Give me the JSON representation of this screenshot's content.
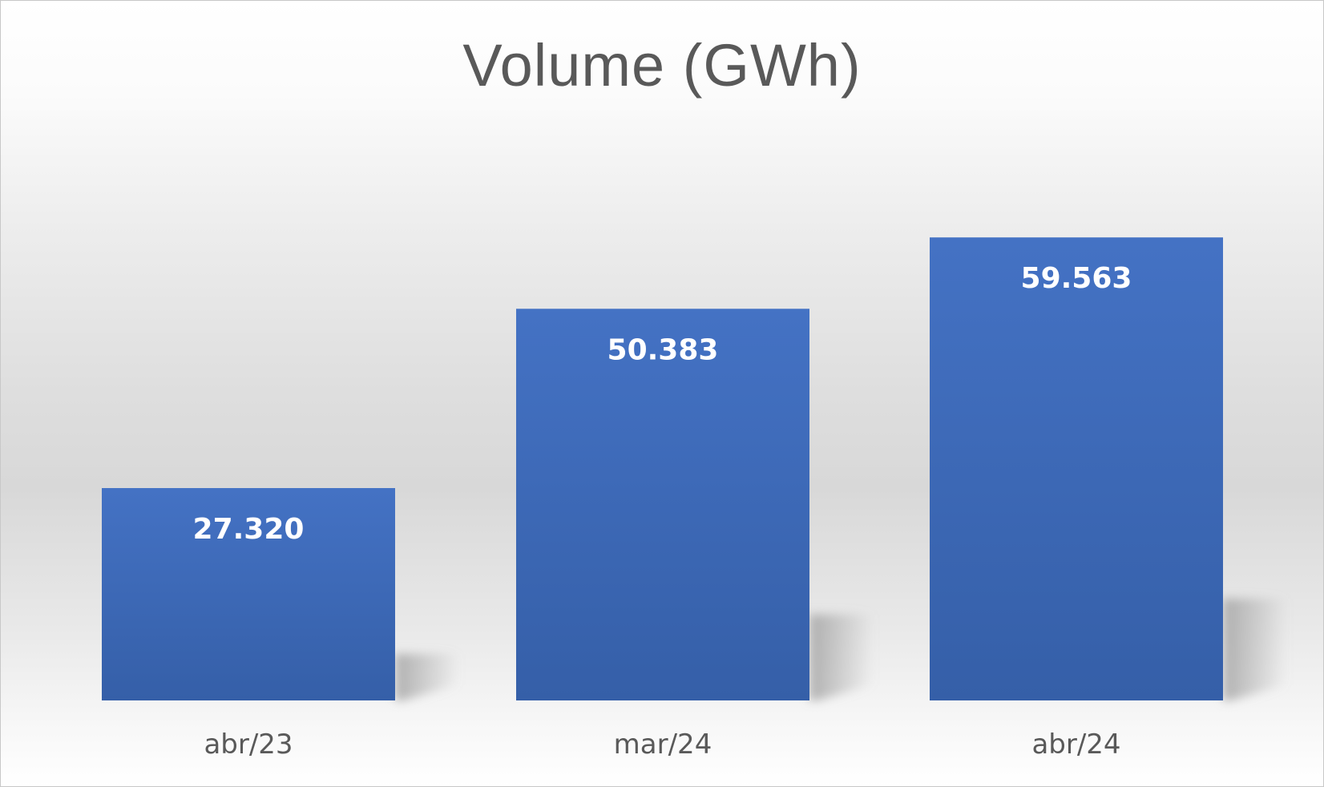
{
  "chart_data": {
    "type": "bar",
    "title": "Volume (GWh)",
    "categories": [
      "abr/23",
      "mar/24",
      "abr/24"
    ],
    "values": [
      27.32,
      50.383,
      59.563
    ],
    "value_labels": [
      "27.320",
      "50.383",
      "59.563"
    ],
    "xlabel": "",
    "ylabel": "",
    "ylim": [
      0,
      90
    ],
    "grid": false,
    "legend": "none",
    "bar_color": "#4472C4",
    "bar_color_dark": "#355FA8",
    "title_color": "#595959",
    "label_color": "#ffffff"
  }
}
